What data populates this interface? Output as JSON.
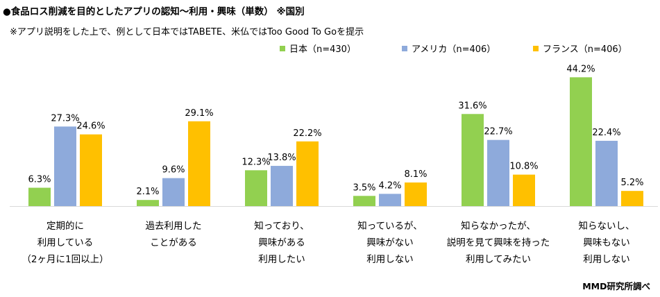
{
  "title": "●食品ロス削減を目的としたアプリの認知～利用・興味（単数） ※国別",
  "subtitle": "※アプリ説明をした上で、例として日本ではTABETE、米仏ではToo Good To Goを提示",
  "source": "MMD研究所調べ",
  "chart_data": {
    "type": "bar",
    "title": "食品ロス削減を目的としたアプリの認知～利用・興味（単数） ※国別",
    "legend_position": "top-right",
    "grid": false,
    "ylim": [
      0,
      50
    ],
    "categories": [
      [
        "定期的に",
        "利用している",
        "（2ヶ月に1回以上）"
      ],
      [
        "過去利用した",
        "ことがある"
      ],
      [
        "知っており、",
        "興味がある",
        "利用したい"
      ],
      [
        "知っているが、",
        "興味がない",
        "利用しない"
      ],
      [
        "知らなかったが、",
        "説明を見て興味を持った",
        "利用してみたい"
      ],
      [
        "知らないし、",
        "興味もない",
        "利用しない"
      ]
    ],
    "series": [
      {
        "name": "日本（n=430）",
        "color": "#92d050",
        "values": [
          6.3,
          2.1,
          12.3,
          3.5,
          31.6,
          44.2
        ]
      },
      {
        "name": "アメリカ（n=406）",
        "color": "#8eaadb",
        "values": [
          27.3,
          9.6,
          13.8,
          4.2,
          22.7,
          22.4
        ]
      },
      {
        "name": "フランス（n=406）",
        "color": "#ffc000",
        "values": [
          24.6,
          29.1,
          22.2,
          8.1,
          10.8,
          5.2
        ]
      }
    ]
  }
}
